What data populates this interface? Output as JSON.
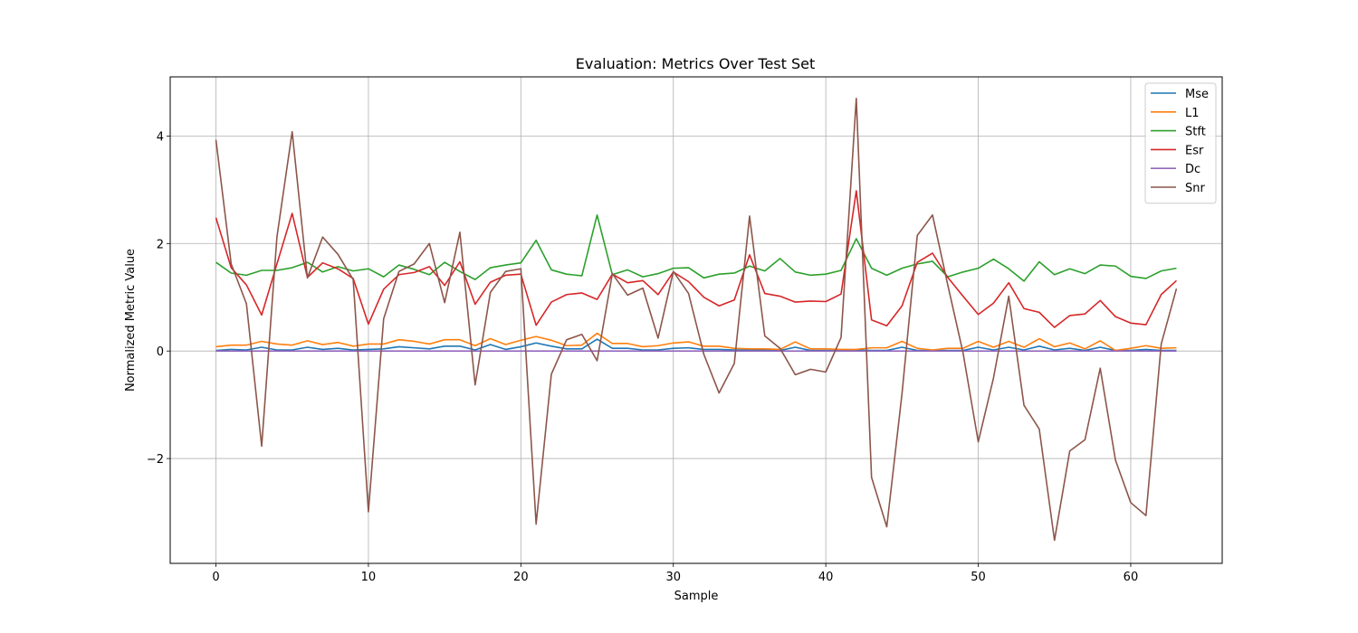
{
  "chart_data": {
    "type": "line",
    "title": "Evaluation: Metrics Over Test Set",
    "xlabel": "Sample",
    "ylabel": "Normalized Metric Value",
    "xlim": [
      -3,
      66
    ],
    "ylim": [
      -3.95,
      5.1
    ],
    "xticks": [
      0,
      10,
      20,
      30,
      40,
      50,
      60
    ],
    "yticks": [
      -2,
      0,
      2,
      4
    ],
    "grid": true,
    "legend_position": "top-right",
    "x": [
      0,
      1,
      2,
      3,
      4,
      5,
      6,
      7,
      8,
      9,
      10,
      11,
      12,
      13,
      14,
      15,
      16,
      17,
      18,
      19,
      20,
      21,
      22,
      23,
      24,
      25,
      26,
      27,
      28,
      29,
      30,
      31,
      32,
      33,
      34,
      35,
      36,
      37,
      38,
      39,
      40,
      41,
      42,
      43,
      44,
      45,
      46,
      47,
      48,
      49,
      50,
      51,
      52,
      53,
      54,
      55,
      56,
      57,
      58,
      59,
      60,
      61,
      62,
      63
    ],
    "series": [
      {
        "name": "Mse",
        "color": "#1f77b4",
        "values": [
          0.01,
          0.03,
          0.02,
          0.07,
          0.02,
          0.02,
          0.07,
          0.03,
          0.05,
          0.02,
          0.03,
          0.04,
          0.08,
          0.06,
          0.04,
          0.09,
          0.09,
          0.02,
          0.12,
          0.03,
          0.08,
          0.15,
          0.09,
          0.04,
          0.04,
          0.22,
          0.05,
          0.05,
          0.02,
          0.02,
          0.05,
          0.06,
          0.03,
          0.03,
          0.02,
          0.02,
          0.02,
          0.01,
          0.07,
          0.01,
          0.01,
          0.01,
          0.02,
          0.01,
          0.01,
          0.07,
          0.01,
          0.01,
          0.01,
          0.01,
          0.07,
          0.02,
          0.07,
          0.02,
          0.09,
          0.02,
          0.05,
          0.01,
          0.07,
          0.01,
          0.01,
          0.03,
          0.01,
          0.01
        ]
      },
      {
        "name": "L1",
        "color": "#ff7f0e",
        "values": [
          0.08,
          0.11,
          0.11,
          0.18,
          0.13,
          0.11,
          0.19,
          0.12,
          0.16,
          0.09,
          0.13,
          0.13,
          0.21,
          0.18,
          0.13,
          0.21,
          0.21,
          0.1,
          0.23,
          0.12,
          0.2,
          0.27,
          0.2,
          0.1,
          0.11,
          0.33,
          0.14,
          0.14,
          0.08,
          0.1,
          0.15,
          0.17,
          0.09,
          0.09,
          0.05,
          0.04,
          0.04,
          0.03,
          0.17,
          0.04,
          0.04,
          0.03,
          0.03,
          0.06,
          0.06,
          0.18,
          0.05,
          0.02,
          0.05,
          0.05,
          0.18,
          0.07,
          0.18,
          0.07,
          0.23,
          0.08,
          0.15,
          0.04,
          0.19,
          0.01,
          0.05,
          0.1,
          0.05,
          0.06
        ]
      },
      {
        "name": "Stft",
        "color": "#2ca02c",
        "values": [
          1.65,
          1.45,
          1.41,
          1.5,
          1.5,
          1.55,
          1.65,
          1.47,
          1.57,
          1.49,
          1.53,
          1.38,
          1.6,
          1.52,
          1.42,
          1.65,
          1.48,
          1.33,
          1.55,
          1.6,
          1.64,
          2.06,
          1.51,
          1.43,
          1.4,
          2.53,
          1.42,
          1.51,
          1.38,
          1.44,
          1.54,
          1.55,
          1.36,
          1.43,
          1.45,
          1.58,
          1.49,
          1.72,
          1.47,
          1.41,
          1.43,
          1.5,
          2.09,
          1.54,
          1.41,
          1.54,
          1.62,
          1.67,
          1.38,
          1.47,
          1.54,
          1.71,
          1.53,
          1.3,
          1.66,
          1.42,
          1.53,
          1.44,
          1.6,
          1.58,
          1.39,
          1.35,
          1.49,
          1.54
        ]
      },
      {
        "name": "Esr",
        "color": "#d62728",
        "values": [
          2.48,
          1.55,
          1.23,
          0.67,
          1.62,
          2.56,
          1.37,
          1.64,
          1.53,
          1.35,
          0.5,
          1.15,
          1.42,
          1.46,
          1.57,
          1.22,
          1.66,
          0.87,
          1.28,
          1.41,
          1.43,
          0.48,
          0.91,
          1.05,
          1.08,
          0.96,
          1.43,
          1.27,
          1.31,
          1.05,
          1.47,
          1.29,
          1.0,
          0.84,
          0.95,
          1.79,
          1.07,
          1.02,
          0.91,
          0.93,
          0.92,
          1.06,
          2.98,
          0.58,
          0.47,
          0.84,
          1.65,
          1.82,
          1.37,
          1.02,
          0.68,
          0.89,
          1.27,
          0.79,
          0.72,
          0.44,
          0.66,
          0.69,
          0.94,
          0.64,
          0.52,
          0.49,
          1.05,
          1.31
        ]
      },
      {
        "name": "Dc",
        "color": "#9467bd",
        "values": [
          0.0,
          0.0,
          0.0,
          0.0,
          0.0,
          0.0,
          0.0,
          0.0,
          0.0,
          0.0,
          0.0,
          0.0,
          0.0,
          0.0,
          0.0,
          0.0,
          0.0,
          0.0,
          0.0,
          0.0,
          0.0,
          0.0,
          0.0,
          0.0,
          0.0,
          0.0,
          0.0,
          0.0,
          0.0,
          0.0,
          0.0,
          0.0,
          0.0,
          0.0,
          0.0,
          0.0,
          0.0,
          0.0,
          0.0,
          0.0,
          0.0,
          0.0,
          0.0,
          0.0,
          0.0,
          0.0,
          0.0,
          0.0,
          0.0,
          0.0,
          0.0,
          0.0,
          0.0,
          0.0,
          0.0,
          0.0,
          0.0,
          0.0,
          0.0,
          0.0,
          0.0,
          0.0,
          0.0,
          0.0
        ]
      },
      {
        "name": "Snr",
        "color": "#8c564b",
        "values": [
          3.93,
          1.62,
          0.88,
          -1.77,
          2.12,
          4.08,
          1.36,
          2.12,
          1.8,
          1.33,
          -2.99,
          0.6,
          1.48,
          1.62,
          2.0,
          0.9,
          2.21,
          -0.63,
          1.09,
          1.48,
          1.53,
          -3.22,
          -0.43,
          0.21,
          0.31,
          -0.18,
          1.44,
          1.04,
          1.17,
          0.24,
          1.48,
          1.07,
          -0.06,
          -0.78,
          -0.23,
          2.51,
          0.28,
          0.05,
          -0.44,
          -0.34,
          -0.39,
          0.25,
          4.7,
          -2.35,
          -3.27,
          -0.79,
          2.15,
          2.53,
          1.23,
          -0.03,
          -1.69,
          -0.5,
          1.02,
          -1.01,
          -1.45,
          -3.52,
          -1.86,
          -1.65,
          -0.32,
          -2.03,
          -2.82,
          -3.06,
          0.13,
          1.16
        ]
      }
    ]
  }
}
